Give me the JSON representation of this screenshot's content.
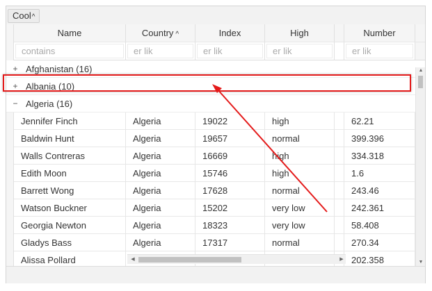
{
  "group_panel": {
    "chip_label": "Cool",
    "chip_arrow": "^"
  },
  "columns": [
    {
      "label": "Name",
      "sort": ""
    },
    {
      "label": "Country",
      "sort": "^"
    },
    {
      "label": "Index",
      "sort": ""
    },
    {
      "label": "High",
      "sort": ""
    },
    {
      "label": "Number",
      "sort": ""
    }
  ],
  "filters": [
    {
      "placeholder": "contains"
    },
    {
      "placeholder": "er lik"
    },
    {
      "placeholder": "er lik"
    },
    {
      "placeholder": "er lik"
    },
    {
      "placeholder": "er lik"
    }
  ],
  "groups": [
    {
      "toggle": "+",
      "label": "Afghanistan (16)"
    },
    {
      "toggle": "+",
      "label": "Albania (10)"
    },
    {
      "toggle": "−",
      "label": "Algeria (16)"
    }
  ],
  "rows": [
    {
      "name": "Jennifer Finch",
      "country": "Algeria",
      "index": "19022",
      "high": "high",
      "number": "62.21"
    },
    {
      "name": "Baldwin Hunt",
      "country": "Algeria",
      "index": "19657",
      "high": "normal",
      "number": "399.396"
    },
    {
      "name": "Walls Contreras",
      "country": "Algeria",
      "index": "16669",
      "high": "high",
      "number": "334.318"
    },
    {
      "name": "Edith Moon",
      "country": "Algeria",
      "index": "15746",
      "high": "high",
      "number": "1.6"
    },
    {
      "name": "Barrett Wong",
      "country": "Algeria",
      "index": "17628",
      "high": "normal",
      "number": "243.46"
    },
    {
      "name": "Watson Buckner",
      "country": "Algeria",
      "index": "15202",
      "high": "very low",
      "number": "242.361"
    },
    {
      "name": "Georgia Newton",
      "country": "Algeria",
      "index": "18323",
      "high": "very low",
      "number": "58.408"
    },
    {
      "name": "Gladys Bass",
      "country": "Algeria",
      "index": "17317",
      "high": "normal",
      "number": "270.34"
    },
    {
      "name": "Alissa Pollard",
      "country": "",
      "index": "",
      "high": "",
      "number": "202.358"
    }
  ],
  "scrollbars": {
    "up_icon": "▲",
    "down_icon": "▼",
    "left_icon": "◀",
    "right_icon": "▶"
  },
  "colors": {
    "highlight": "#e41a1a",
    "arrow": "#e41a1a"
  }
}
